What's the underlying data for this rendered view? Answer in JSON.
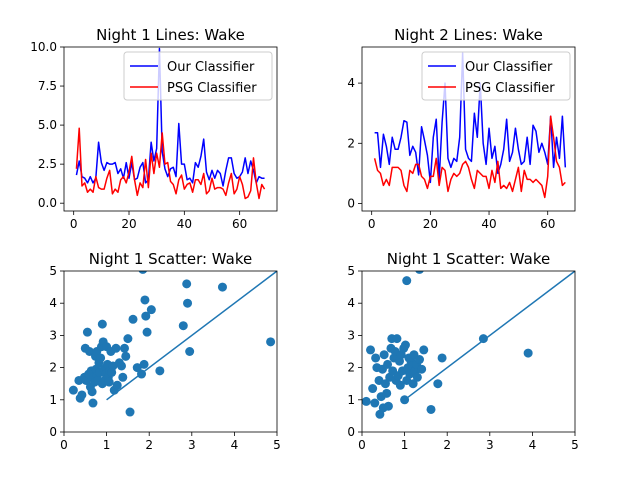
{
  "chart_data": [
    {
      "type": "line",
      "title": "Night 1 Lines: Wake",
      "xlim": [
        -3.5,
        73.5
      ],
      "ylim": [
        -0.5,
        10.0
      ],
      "xticks": [
        0,
        20,
        40,
        60
      ],
      "yticks": [
        0.0,
        2.5,
        5.0,
        7.5,
        10.0
      ],
      "ytick_labels": [
        "0.0",
        "2.5",
        "5.0",
        "7.5",
        "10.0"
      ],
      "legend": "top-right",
      "series": [
        {
          "name": "Our Classifier",
          "color": "#0000ff",
          "values": [
            1.8,
            2.7,
            1.7,
            1.6,
            1.3,
            1.7,
            1.3,
            1.6,
            3.9,
            2.6,
            2.1,
            2.6,
            2.5,
            2.5,
            2.6,
            1.9,
            2.2,
            1.6,
            2.6,
            1.6,
            2.6,
            1.5,
            1.6,
            2.3,
            2.6,
            1.3,
            1.5,
            3.9,
            2.7,
            3.5,
            9.9,
            3.3,
            2.2,
            1.7,
            2.2,
            2.3,
            1.7,
            5.1,
            2.5,
            2.5,
            1.5,
            1.6,
            1.3,
            2.6,
            2.3,
            3.0,
            4.1,
            2.0,
            1.5,
            2.1,
            1.6,
            2.1,
            1.9,
            1.1,
            2.1,
            2.9,
            2.9,
            1.9,
            1.6,
            1.7,
            2.0,
            2.9,
            1.9,
            2.7,
            2.1,
            1.3,
            1.7,
            1.6,
            1.6
          ]
        },
        {
          "name": "PSG Classifier",
          "color": "#ff0000",
          "values": [
            2.2,
            4.8,
            1.1,
            1.3,
            0.7,
            0.9,
            0.7,
            1.7,
            1.0,
            0.9,
            0.9,
            1.6,
            2.1,
            0.6,
            0.9,
            0.7,
            1.5,
            1.7,
            1.3,
            2.0,
            3.0,
            1.5,
            0.5,
            1.3,
            1.0,
            2.8,
            1.0,
            3.2,
            1.9,
            3.2,
            2.3,
            4.5,
            2.5,
            2.6,
            1.4,
            1.2,
            0.6,
            1.5,
            1.8,
            0.9,
            1.2,
            1.3,
            0.7,
            1.5,
            1.5,
            1.2,
            1.9,
            0.6,
            0.8,
            1.6,
            0.9,
            1.0,
            1.0,
            0.9,
            0.5,
            1.3,
            1.9,
            0.6,
            0.9,
            1.7,
            1.2,
            0.3,
            0.4,
            0.8,
            2.9,
            1.3,
            0.3,
            1.2,
            0.9
          ]
        }
      ]
    },
    {
      "type": "line",
      "title": "Night 2 Lines: Wake",
      "xlim": [
        -3.3,
        69.3
      ],
      "ylim": [
        -0.25,
        5.2
      ],
      "xticks": [
        0,
        20,
        40,
        60
      ],
      "yticks": [
        0,
        2,
        4
      ],
      "ytick_labels": [
        "0",
        "2",
        "4"
      ],
      "legend": "top-right",
      "series": [
        {
          "name": "Our Classifier",
          "color": "#0000ff",
          "values": [
            2.35,
            2.35,
            1.2,
            2.3,
            1.9,
            1.3,
            2.2,
            1.8,
            1.8,
            2.2,
            2.75,
            2.7,
            1.6,
            1.9,
            1.7,
            0.95,
            2.55,
            2.1,
            1.6,
            0.7,
            2.2,
            2.8,
            0.8,
            2.7,
            4.0,
            1.5,
            1.2,
            1.5,
            1.4,
            2.2,
            5.0,
            1.8,
            1.5,
            1.4,
            3.0,
            2.2,
            4.0,
            2.0,
            1.3,
            2.5,
            1.5,
            1.9,
            1.0,
            1.3,
            1.8,
            2.8,
            1.4,
            1.7,
            2.5,
            1.8,
            1.3,
            1.4,
            2.2,
            1.3,
            2.6,
            2.4,
            1.7,
            2.0,
            1.7,
            1.3,
            2.9,
            1.2,
            2.2,
            1.5,
            2.9,
            1.2
          ]
        },
        {
          "name": "PSG Classifier",
          "color": "#ff0000",
          "values": [
            1.5,
            1.1,
            1.0,
            0.6,
            0.8,
            0.6,
            1.2,
            1.2,
            1.2,
            1.1,
            0.6,
            0.4,
            1.1,
            1.0,
            1.3,
            1.3,
            0.9,
            0.8,
            0.5,
            0.9,
            0.9,
            1.5,
            0.6,
            1.2,
            1.1,
            0.4,
            0.8,
            1.0,
            0.9,
            1.0,
            1.3,
            1.4,
            1.2,
            0.8,
            0.5,
            1.1,
            1.0,
            0.9,
            0.9,
            0.5,
            1.1,
            0.7,
            1.4,
            0.5,
            0.6,
            0.5,
            0.7,
            0.4,
            0.8,
            1.2,
            0.4,
            1.1,
            0.8,
            0.8,
            0.7,
            0.8,
            0.7,
            0.6,
            0.2,
            0.9,
            2.9,
            2.2,
            1.4,
            1.2,
            0.6,
            0.7
          ]
        }
      ]
    },
    {
      "type": "scatter",
      "title": "Night 1 Scatter: Wake",
      "xlim": [
        0,
        5
      ],
      "ylim": [
        0,
        5
      ],
      "xticks": [
        0,
        1,
        2,
        3,
        4,
        5
      ],
      "yticks": [
        0,
        1,
        2,
        3,
        4,
        5
      ],
      "point_color": "#1f77b4",
      "line_color": "#1f77b4",
      "line": [
        [
          1,
          1
        ],
        [
          5,
          5
        ]
      ],
      "points": [
        [
          0.22,
          1.3
        ],
        [
          0.35,
          1.6
        ],
        [
          0.38,
          1.05
        ],
        [
          0.42,
          1.15
        ],
        [
          0.48,
          1.7
        ],
        [
          0.5,
          2.6
        ],
        [
          0.52,
          1.6
        ],
        [
          0.55,
          3.1
        ],
        [
          0.58,
          1.8
        ],
        [
          0.6,
          2.5
        ],
        [
          0.62,
          1.4
        ],
        [
          0.64,
          1.9
        ],
        [
          0.66,
          1.25
        ],
        [
          0.68,
          0.9
        ],
        [
          0.7,
          1.7
        ],
        [
          0.72,
          1.55
        ],
        [
          0.74,
          2.35
        ],
        [
          0.75,
          1.95
        ],
        [
          0.77,
          2.5
        ],
        [
          0.78,
          1.75
        ],
        [
          0.8,
          1.6
        ],
        [
          0.82,
          2.15
        ],
        [
          0.84,
          1.85
        ],
        [
          0.86,
          2.3
        ],
        [
          0.88,
          2.65
        ],
        [
          0.9,
          1.5
        ],
        [
          0.9,
          3.35
        ],
        [
          0.92,
          2.8
        ],
        [
          0.94,
          1.95
        ],
        [
          0.96,
          1.6
        ],
        [
          0.98,
          1.8
        ],
        [
          1.0,
          2.65
        ],
        [
          1.02,
          2.1
        ],
        [
          1.04,
          1.7
        ],
        [
          1.06,
          1.55
        ],
        [
          1.08,
          1.9
        ],
        [
          1.1,
          2.5
        ],
        [
          1.12,
          1.85
        ],
        [
          1.15,
          2.05
        ],
        [
          1.18,
          1.3
        ],
        [
          1.22,
          2.6
        ],
        [
          1.25,
          1.45
        ],
        [
          1.3,
          2.15
        ],
        [
          1.35,
          2.05
        ],
        [
          1.38,
          1.7
        ],
        [
          1.42,
          2.6
        ],
        [
          1.45,
          2.35
        ],
        [
          1.5,
          2.9
        ],
        [
          1.55,
          0.62
        ],
        [
          1.62,
          3.5
        ],
        [
          1.72,
          2.0
        ],
        [
          1.82,
          1.8
        ],
        [
          1.85,
          5.05
        ],
        [
          1.88,
          2.1
        ],
        [
          1.9,
          4.1
        ],
        [
          1.92,
          3.6
        ],
        [
          1.95,
          3.1
        ],
        [
          2.05,
          3.8
        ],
        [
          2.25,
          1.9
        ],
        [
          2.8,
          3.3
        ],
        [
          2.88,
          4.6
        ],
        [
          2.9,
          4.0
        ],
        [
          2.95,
          2.5
        ],
        [
          3.72,
          4.5
        ],
        [
          4.85,
          2.8
        ]
      ]
    },
    {
      "type": "scatter",
      "title": "Night 1 Scatter: Wake",
      "xlim": [
        0,
        5
      ],
      "ylim": [
        0,
        5
      ],
      "xticks": [
        0,
        1,
        2,
        3,
        4,
        5
      ],
      "yticks": [
        0,
        1,
        2,
        3,
        4,
        5
      ],
      "point_color": "#1f77b4",
      "line_color": "#1f77b4",
      "line": [
        [
          1,
          1
        ],
        [
          5,
          5
        ]
      ],
      "points": [
        [
          0.1,
          0.95
        ],
        [
          0.2,
          2.55
        ],
        [
          0.25,
          1.35
        ],
        [
          0.3,
          0.9
        ],
        [
          0.32,
          2.3
        ],
        [
          0.35,
          2.0
        ],
        [
          0.4,
          1.6
        ],
        [
          0.42,
          0.55
        ],
        [
          0.45,
          1.1
        ],
        [
          0.48,
          1.95
        ],
        [
          0.5,
          0.75
        ],
        [
          0.52,
          2.4
        ],
        [
          0.55,
          1.5
        ],
        [
          0.58,
          1.2
        ],
        [
          0.6,
          2.1
        ],
        [
          0.62,
          0.8
        ],
        [
          0.65,
          1.7
        ],
        [
          0.68,
          2.6
        ],
        [
          0.7,
          2.9
        ],
        [
          0.72,
          1.9
        ],
        [
          0.75,
          2.3
        ],
        [
          0.78,
          2.5
        ],
        [
          0.8,
          1.6
        ],
        [
          0.82,
          2.9
        ],
        [
          0.85,
          1.75
        ],
        [
          0.88,
          2.2
        ],
        [
          0.9,
          1.45
        ],
        [
          0.92,
          2.4
        ],
        [
          0.95,
          1.9
        ],
        [
          0.98,
          2.6
        ],
        [
          1.0,
          1.0
        ],
        [
          1.02,
          2.7
        ],
        [
          1.05,
          1.6
        ],
        [
          1.08,
          2.0
        ],
        [
          1.1,
          2.3
        ],
        [
          1.12,
          1.8
        ],
        [
          1.15,
          2.2
        ],
        [
          1.18,
          2.05
        ],
        [
          1.2,
          1.5
        ],
        [
          1.22,
          2.4
        ],
        [
          1.25,
          1.9
        ],
        [
          1.28,
          2.1
        ],
        [
          1.3,
          1.7
        ],
        [
          1.35,
          2.25
        ],
        [
          1.4,
          1.95
        ],
        [
          1.45,
          2.55
        ],
        [
          1.05,
          4.7
        ],
        [
          1.35,
          5.05
        ],
        [
          1.62,
          0.7
        ],
        [
          1.78,
          1.5
        ],
        [
          1.88,
          2.3
        ],
        [
          2.85,
          2.9
        ],
        [
          3.9,
          2.45
        ]
      ]
    }
  ]
}
